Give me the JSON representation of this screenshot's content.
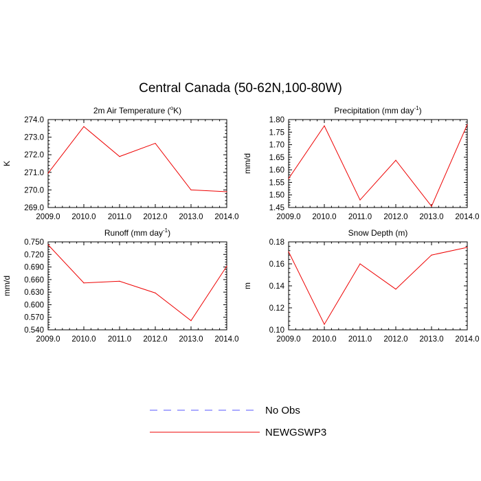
{
  "figure": {
    "title": "Central Canada (50-62N,100-80W)"
  },
  "legend": {
    "items": [
      {
        "label": "No Obs",
        "color": "#5555ff",
        "style": "dashed"
      },
      {
        "label": "NEWGSWP3",
        "color": "#ee0000",
        "style": "solid"
      }
    ]
  },
  "chart_data": [
    {
      "type": "line",
      "title": "2m Air Temperature (oK)",
      "title_parts": {
        "before": "2m Air Temperature (",
        "sup": "o",
        "after": "K)"
      },
      "ylabel": "K",
      "x": [
        2009.0,
        2010.0,
        2011.0,
        2012.0,
        2013.0,
        2014.0
      ],
      "xtick_labels": [
        "2009.0",
        "2010.0",
        "2011.0",
        "2012.0",
        "2013.0",
        "2014.0"
      ],
      "ylim": [
        269.0,
        274.0
      ],
      "yticks": [
        269.0,
        270.0,
        271.0,
        272.0,
        273.0,
        274.0
      ],
      "ytick_labels": [
        "269.0",
        "270.0",
        "271.0",
        "272.0",
        "273.0",
        "274.0"
      ],
      "series": [
        {
          "name": "NEWGSWP3",
          "values": [
            270.95,
            273.6,
            271.9,
            272.65,
            270.0,
            269.9
          ]
        }
      ]
    },
    {
      "type": "line",
      "title": "Precipitation (mm day-1)",
      "title_parts": {
        "before": "Precipitation (mm day",
        "sup": "-1",
        "after": ")"
      },
      "ylabel": "mm/d",
      "x": [
        2009.0,
        2010.0,
        2011.0,
        2012.0,
        2013.0,
        2014.0
      ],
      "xtick_labels": [
        "2009.0",
        "2010.0",
        "2011.0",
        "2012.0",
        "2013.0",
        "2014.0"
      ],
      "ylim": [
        1.45,
        1.8
      ],
      "yticks": [
        1.45,
        1.5,
        1.55,
        1.6,
        1.65,
        1.7,
        1.75,
        1.8
      ],
      "ytick_labels": [
        "1.45",
        "1.50",
        "1.55",
        "1.60",
        "1.65",
        "1.70",
        "1.75",
        "1.80"
      ],
      "series": [
        {
          "name": "NEWGSWP3",
          "values": [
            1.565,
            1.775,
            1.48,
            1.638,
            1.455,
            1.78
          ]
        }
      ]
    },
    {
      "type": "line",
      "title": "Runoff (mm day-1)",
      "title_parts": {
        "before": "Runoff (mm day",
        "sup": "-1",
        "after": ")"
      },
      "ylabel": "mm/d",
      "x": [
        2009.0,
        2010.0,
        2011.0,
        2012.0,
        2013.0,
        2014.0
      ],
      "xtick_labels": [
        "2009.0",
        "2010.0",
        "2011.0",
        "2012.0",
        "2013.0",
        "2014.0"
      ],
      "ylim": [
        0.54,
        0.75
      ],
      "yticks": [
        0.54,
        0.57,
        0.6,
        0.63,
        0.66,
        0.69,
        0.72,
        0.75
      ],
      "ytick_labels": [
        "0.540",
        "0.570",
        "0.600",
        "0.630",
        "0.660",
        "0.690",
        "0.720",
        "0.750"
      ],
      "series": [
        {
          "name": "NEWGSWP3",
          "values": [
            0.743,
            0.652,
            0.656,
            0.628,
            0.562,
            0.692
          ]
        }
      ]
    },
    {
      "type": "line",
      "title": "Snow Depth (m)",
      "title_parts": {
        "before": "Snow Depth (m)",
        "sup": "",
        "after": ""
      },
      "ylabel": "m",
      "x": [
        2009.0,
        2010.0,
        2011.0,
        2012.0,
        2013.0,
        2014.0
      ],
      "xtick_labels": [
        "2009.0",
        "2010.0",
        "2011.0",
        "2012.0",
        "2013.0",
        "2014.0"
      ],
      "ylim": [
        0.1,
        0.18
      ],
      "yticks": [
        0.1,
        0.12,
        0.14,
        0.16,
        0.18
      ],
      "ytick_labels": [
        "0.10",
        "0.12",
        "0.14",
        "0.16",
        "0.18"
      ],
      "series": [
        {
          "name": "NEWGSWP3",
          "values": [
            0.171,
            0.105,
            0.16,
            0.137,
            0.168,
            0.175
          ]
        }
      ]
    }
  ]
}
